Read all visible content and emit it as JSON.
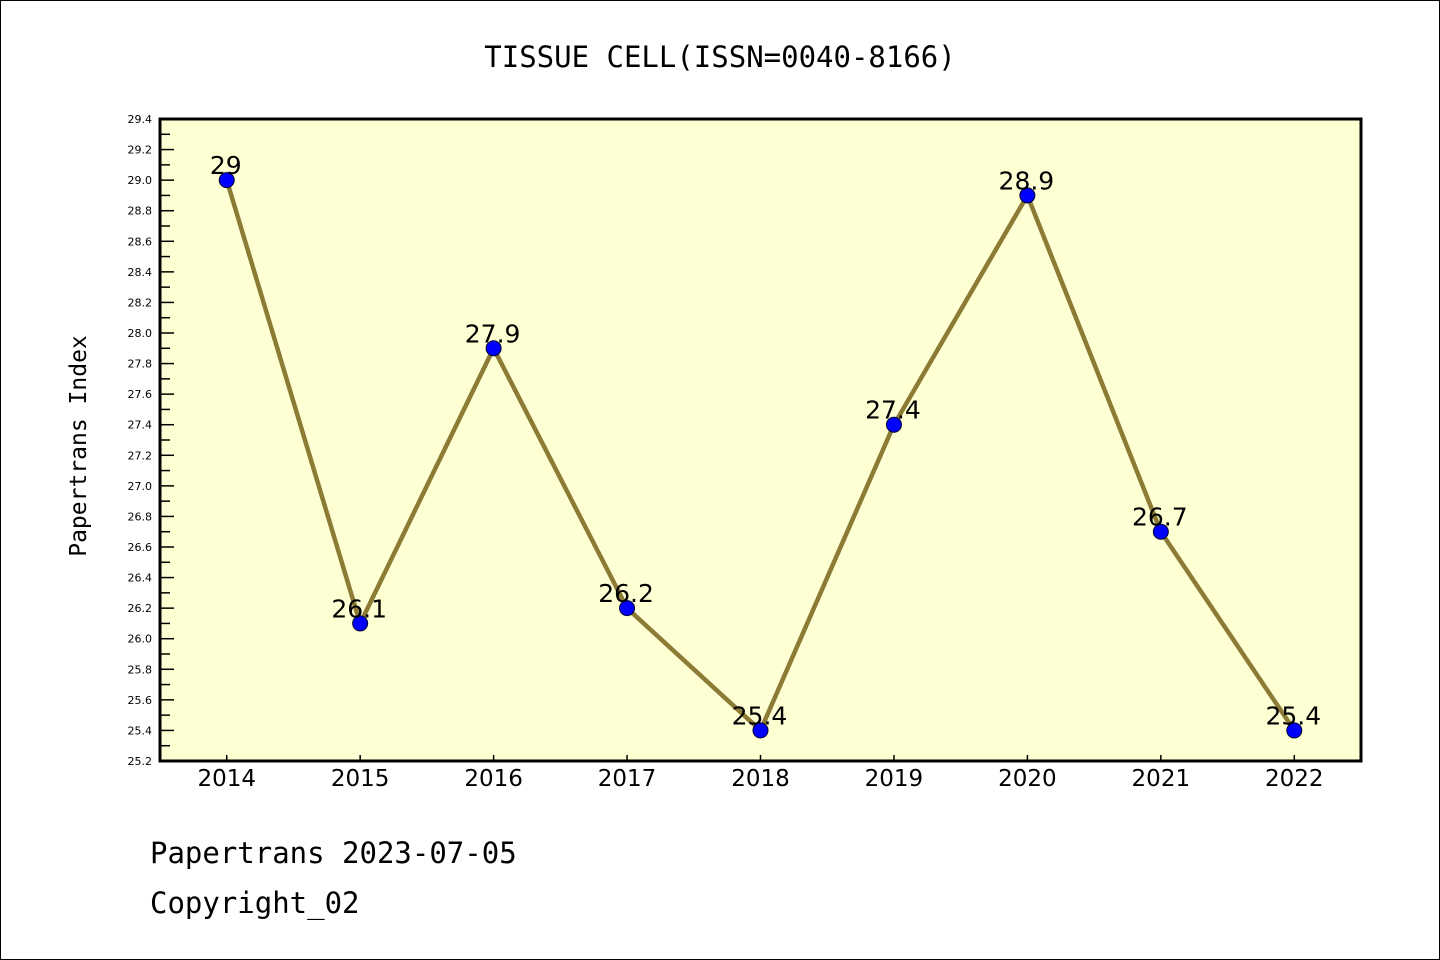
{
  "chart_data": {
    "type": "line",
    "title": "TISSUE CELL(ISSN=0040-8166)",
    "xlabel": "",
    "ylabel": "Papertrans Index",
    "categories": [
      "2014",
      "2015",
      "2016",
      "2017",
      "2018",
      "2019",
      "2020",
      "2021",
      "2022"
    ],
    "values": [
      29.0,
      26.1,
      27.9,
      26.2,
      25.4,
      27.4,
      28.9,
      26.7,
      25.4
    ],
    "data_labels": [
      "29",
      "26.1",
      "27.9",
      "26.2",
      "25.4",
      "27.4",
      "28.9",
      "26.7",
      "25.4"
    ],
    "ylim": [
      25.2,
      29.4
    ],
    "yticks": [
      "25.2",
      "25.4",
      "25.6",
      "25.8",
      "26.0",
      "26.2",
      "26.4",
      "26.6",
      "26.8",
      "27.0",
      "27.2",
      "27.4",
      "27.6",
      "27.8",
      "28.0",
      "28.2",
      "28.4",
      "28.6",
      "28.8",
      "29.0",
      "29.2",
      "29.4"
    ],
    "grid": false,
    "colors": {
      "line": "#8b7b35",
      "marker": "#0000ff",
      "plot_bg": "#ffffd4"
    }
  },
  "footer": {
    "line1": "Papertrans 2023-07-05",
    "line2": "Copyright_02"
  }
}
